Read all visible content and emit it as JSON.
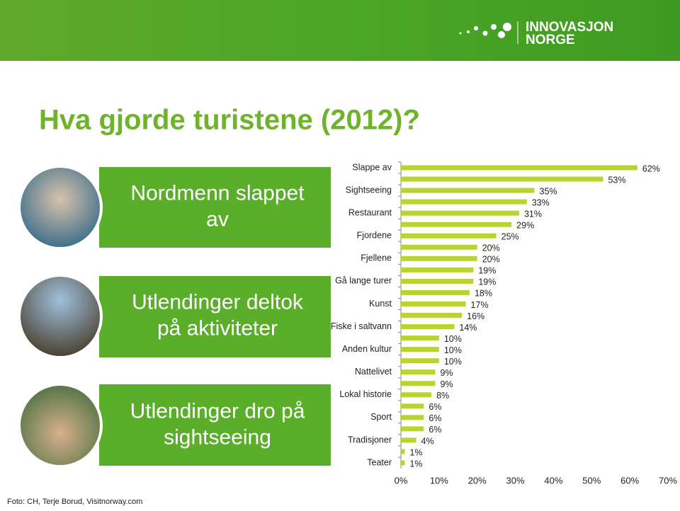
{
  "logo": [
    "INNOVASJON",
    "NORGE"
  ],
  "title": "Hva gjorde turistene (2012)?",
  "panels": [
    [
      "Nordmenn slappet",
      "av"
    ],
    [
      "Utlendinger deltok",
      "på aktiviteter"
    ],
    [
      "Utlendinger dro på",
      "sightseeing"
    ]
  ],
  "photo_credit": "Foto: CH, Terje Borud, Visitnorway.com",
  "chart_data": {
    "type": "bar",
    "orientation": "horizontal",
    "color": "#b7d433",
    "categories": [
      "Slappe av",
      null,
      "Sightseeing",
      null,
      "Restaurant",
      null,
      "Fjordene",
      null,
      "Fjellene",
      null,
      "Gå lange turer",
      null,
      "Kunst",
      null,
      "Fiske i saltvann",
      null,
      "Anden kultur",
      null,
      "Nattelivet",
      null,
      "Lokal historie",
      null,
      "Sport",
      null,
      "Tradisjoner",
      null,
      "Teater"
    ],
    "values": [
      62,
      53,
      35,
      33,
      31,
      29,
      25,
      20,
      20,
      19,
      19,
      18,
      17,
      16,
      14,
      10,
      10,
      10,
      9,
      9,
      8,
      6,
      6,
      6,
      4,
      1,
      1
    ],
    "value_labels": [
      "62%",
      "53%",
      "35%",
      "33%",
      "31%",
      "29%",
      "25%",
      "20%",
      "20%",
      "19%",
      "19%",
      "18%",
      "17%",
      "16%",
      "14%",
      "10%",
      "10%",
      "10%",
      "9%",
      "9%",
      "8%",
      "6%",
      "6%",
      "6%",
      "4%",
      "1%",
      "1%"
    ],
    "xlim": [
      0,
      70
    ],
    "xticks": [
      {
        "value": 0,
        "label": "0%"
      },
      {
        "value": 10,
        "label": "10%"
      },
      {
        "value": 20,
        "label": "20%"
      },
      {
        "value": 30,
        "label": "30%"
      },
      {
        "value": 40,
        "label": "40%"
      },
      {
        "value": 50,
        "label": "50%"
      },
      {
        "value": 60,
        "label": "60%"
      },
      {
        "value": 70,
        "label": "70%"
      }
    ],
    "grid": false
  }
}
